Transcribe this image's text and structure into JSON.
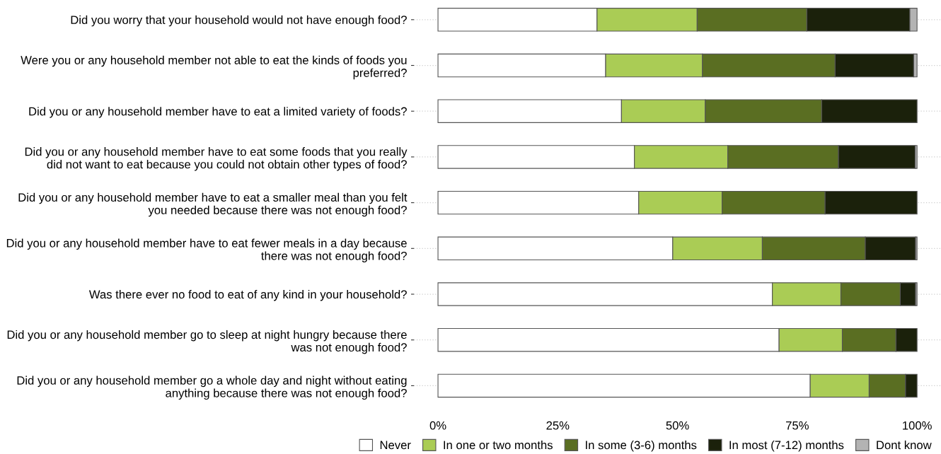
{
  "chart_data": {
    "type": "bar",
    "orientation": "horizontal",
    "stacked": true,
    "categories": [
      "Did you worry that your household would not have enough food?",
      "Were you or any household member not able to eat the kinds of foods you preferred?",
      "Did you or any household member have to eat a limited variety of foods?",
      "Did you or any household member have to eat some foods that you really did not want to eat because you could not obtain other types of food?",
      "Did you or any household member have to eat a smaller meal than you felt you needed because there was not enough food?",
      "Did you or any household member have to eat fewer meals in a day because there was not enough food?",
      "Was there ever no food to eat of any kind in your household?",
      "Did you or any household member go to sleep at night hungry because there was not enough food?",
      "Did you or any household member go a whole day and night without eating anything because there was not enough food?"
    ],
    "series": [
      {
        "name": "Never",
        "color": "#ffffff",
        "values": [
          33.2,
          35.0,
          38.3,
          41.0,
          41.9,
          49.0,
          69.8,
          71.2,
          77.7
        ]
      },
      {
        "name": "In one or two months",
        "color": "#aacc55",
        "values": [
          20.9,
          20.2,
          17.5,
          19.5,
          17.4,
          18.7,
          14.3,
          13.2,
          12.3
        ]
      },
      {
        "name": "In some (3-6) months",
        "color": "#5a6e22",
        "values": [
          22.9,
          27.7,
          24.3,
          23.1,
          21.5,
          21.5,
          12.4,
          11.2,
          7.6
        ]
      },
      {
        "name": "In most (7-12) months",
        "color": "#1b210b",
        "values": [
          21.5,
          16.4,
          19.9,
          16.0,
          19.2,
          10.5,
          3.2,
          4.4,
          2.4
        ]
      },
      {
        "name": "Dont know",
        "color": "#b3b3b3",
        "values": [
          1.5,
          0.7,
          0,
          0.4,
          0,
          0.3,
          0.3,
          0,
          0
        ]
      }
    ],
    "xlim": [
      -5,
      105
    ],
    "xticks": [
      {
        "value": 0,
        "label": "0%"
      },
      {
        "value": 25,
        "label": "25%"
      },
      {
        "value": 50,
        "label": "50%"
      },
      {
        "value": 75,
        "label": "75%"
      },
      {
        "value": 100,
        "label": "100%"
      }
    ],
    "grid": "y",
    "legend": "bottom"
  }
}
